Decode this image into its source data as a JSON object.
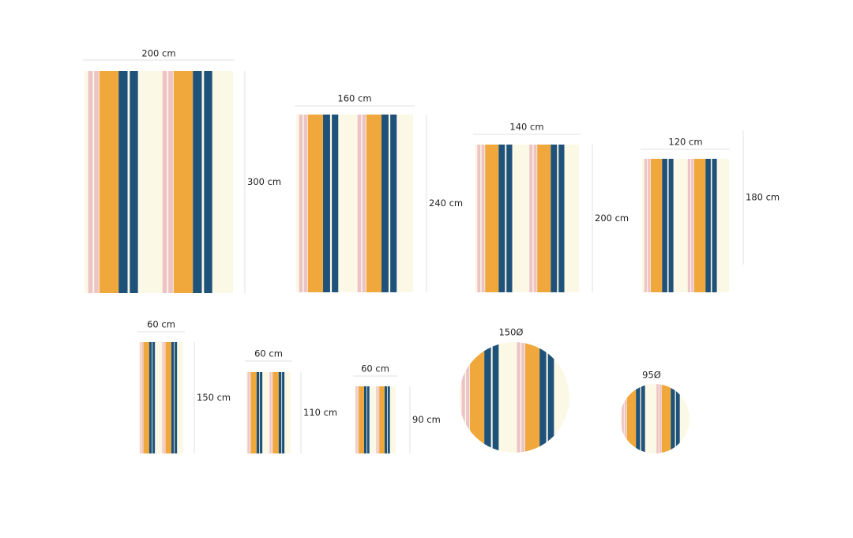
{
  "rugs": [
    {
      "width_label": "200 cm",
      "height_label": "300 cm"
    },
    {
      "width_label": "160 cm",
      "height_label": "240 cm"
    },
    {
      "width_label": "140 cm",
      "height_label": "200 cm"
    },
    {
      "width_label": "120 cm",
      "height_label": "180 cm"
    },
    {
      "width_label": "60 cm",
      "height_label": "150 cm"
    },
    {
      "width_label": "60 cm",
      "height_label": "110 cm"
    },
    {
      "width_label": "60 cm",
      "height_label": "90 cm"
    }
  ],
  "round_rugs": [
    {
      "label": "150Ø"
    },
    {
      "label": "95Ø"
    }
  ]
}
